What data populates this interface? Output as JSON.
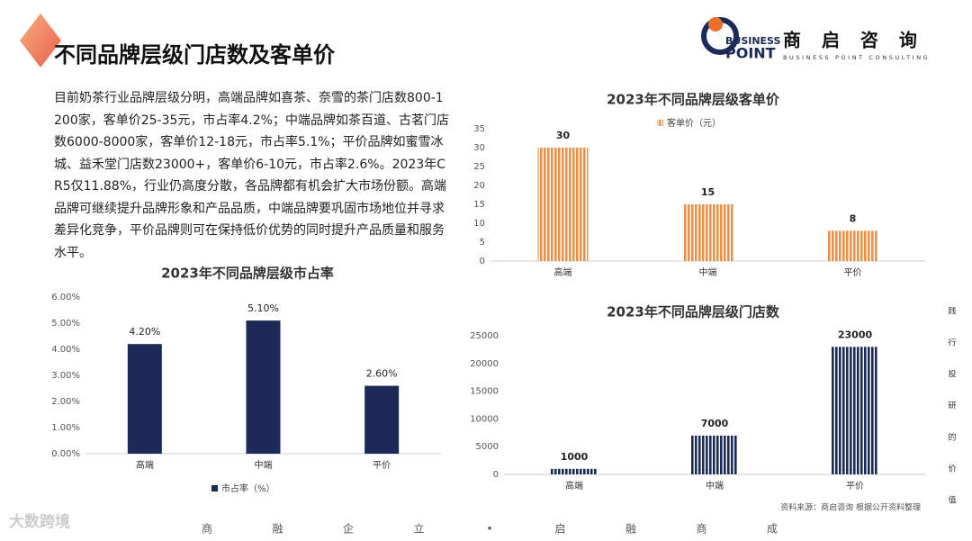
{
  "header": {
    "title": "不同品牌层级门店数及客单价"
  },
  "logo": {
    "brand_top": "BUSINESS",
    "brand_bottom": "POINT",
    "name": "商 启 咨 询",
    "tagline": "BUSINESS POINT CONSULTING"
  },
  "intro": "目前奶茶行业品牌层级分明，高端品牌如喜茶、奈雪的茶门店数800-1200家，客单价25-35元，市占率4.2%；中端品牌如茶百道、古茗门店数6000-8000家，客单价12-18元，市占率5.1%；平价品牌如蜜雪冰城、益禾堂门店数23000+，客单价6-10元，市占率2.6%。2023年CR5仅11.88%，行业仍高度分散，各品牌都有机会扩大市场份额。高端品牌可继续提升品牌形象和产品品质，中端品牌要巩固市场地位并寻求差异化竞争，平价品牌则可在保持低价优势的同时提升产品质量和服务水平。",
  "chart_data": [
    {
      "type": "bar",
      "title": "2023年不同品牌层级市占率",
      "categories": [
        "高端",
        "中端",
        "平价"
      ],
      "series": [
        {
          "name": "市占率（%）",
          "color": "#1b2a56",
          "values": [
            4.2,
            5.1,
            2.6
          ],
          "value_labels": [
            "4.20%",
            "5.10%",
            "2.60%"
          ]
        }
      ],
      "ylim": [
        0,
        6
      ],
      "yticks": [
        {
          "value": 0,
          "label": "0.00%"
        },
        {
          "value": 1,
          "label": "1.00%"
        },
        {
          "value": 2,
          "label": "2.00%"
        },
        {
          "value": 3,
          "label": "3.00%"
        },
        {
          "value": 4,
          "label": "4.00%"
        },
        {
          "value": 5,
          "label": "5.00%"
        },
        {
          "value": 6,
          "label": "6.00%"
        }
      ],
      "grid": false,
      "legend": "bottom"
    },
    {
      "type": "bar",
      "title": "2023年不同品牌层级客单价",
      "categories": [
        "高端",
        "中端",
        "平价"
      ],
      "series": [
        {
          "name": "客单价（元）",
          "color": "#e8914a",
          "values": [
            30,
            15,
            8
          ]
        }
      ],
      "ylim": [
        0,
        35
      ],
      "yticks": [
        0,
        5,
        10,
        15,
        20,
        25,
        30,
        35
      ],
      "grid": false,
      "legend": "top"
    },
    {
      "type": "bar",
      "title": "2023年不同品牌层级门店数",
      "categories": [
        "高端",
        "中端",
        "平价"
      ],
      "values": [
        1000,
        7000,
        23000
      ],
      "color": "#1b2a56",
      "ylim": [
        0,
        25000
      ],
      "yticks": [
        0,
        5000,
        10000,
        15000,
        20000,
        25000
      ],
      "grid": false
    }
  ],
  "source": "资料来源：商启咨询 根据公开资料整理",
  "side_text": [
    "践",
    "行",
    "投",
    "研",
    "的",
    "价",
    "值"
  ],
  "footer_text": [
    "商",
    "融",
    "企",
    "立",
    "•",
    "启",
    "融",
    "商",
    "成"
  ],
  "watermark": "大数跨境"
}
